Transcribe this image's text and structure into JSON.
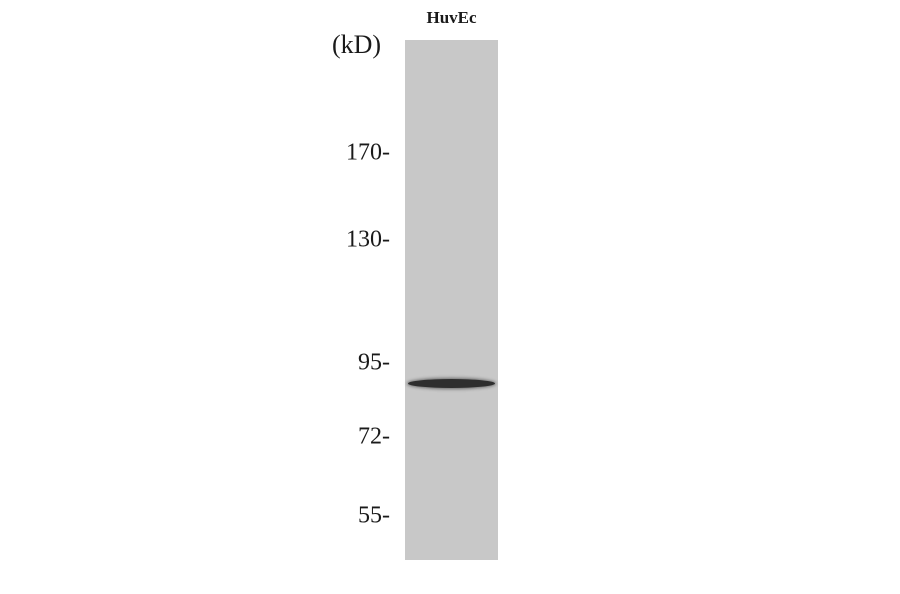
{
  "lane": {
    "label": "HuvEc",
    "background_color": "#c8c8c8"
  },
  "unit_label": "(kD)",
  "markers": [
    {
      "label": "170-",
      "kd": 170
    },
    {
      "label": "130-",
      "kd": 130
    },
    {
      "label": "95-",
      "kd": 95
    },
    {
      "label": "72-",
      "kd": 72
    },
    {
      "label": "55-",
      "kd": 55
    }
  ],
  "bands": [
    {
      "kd": 88,
      "color": "#2e2e2e"
    }
  ]
}
